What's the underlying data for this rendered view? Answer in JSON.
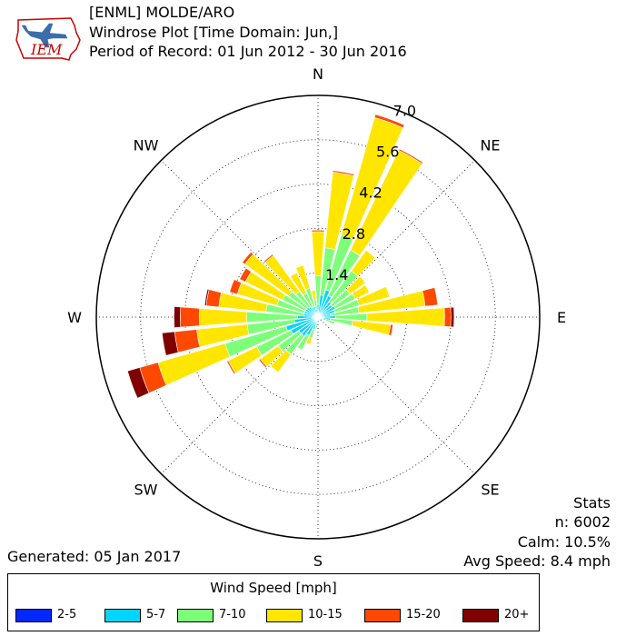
{
  "header": {
    "line1": "[ENML] MOLDE/ARO",
    "line2": "Windrose Plot [Time Domain: Jun,]",
    "line3": "Period of Record: 01 Jun 2012 - 30 Jun 2016"
  },
  "logo": {
    "text": "IEM"
  },
  "generated": "Generated: 05 Jan 2017",
  "stats": {
    "title": "Stats",
    "n": "n: 6002",
    "calm": "Calm: 10.5%",
    "avg": "Avg Speed: 8.4 mph"
  },
  "legend": {
    "title": "Wind Speed [mph]",
    "items": [
      {
        "label": "2-5",
        "color": "#0028ff"
      },
      {
        "label": "5-7",
        "color": "#00d4ff"
      },
      {
        "label": "7-10",
        "color": "#7dff7a"
      },
      {
        "label": "10-15",
        "color": "#ffe600"
      },
      {
        "label": "15-20",
        "color": "#ff4800"
      },
      {
        "label": "20+",
        "color": "#800000"
      }
    ]
  },
  "chart_data": {
    "type": "windrose",
    "directions": [
      "N",
      "NE",
      "E",
      "SE",
      "S",
      "SW",
      "W",
      "NW"
    ],
    "radial_ticks": [
      "1.4",
      "2.8",
      "4.2",
      "5.6",
      "7.0"
    ],
    "rmax": 7.0,
    "bin_labels": [
      "2-5",
      "5-7",
      "7-10",
      "10-15",
      "15-20",
      "20+"
    ],
    "bin_colors": [
      "#0028ff",
      "#00d4ff",
      "#7dff7a",
      "#ffe600",
      "#ff4800",
      "#800000"
    ],
    "sectors_deg": [
      0,
      10,
      20,
      30,
      40,
      50,
      60,
      70,
      80,
      90,
      100,
      110,
      120,
      130,
      140,
      150,
      160,
      170,
      180,
      190,
      200,
      210,
      220,
      230,
      240,
      250,
      260,
      270,
      280,
      290,
      300,
      310,
      320,
      330,
      340,
      350
    ],
    "values": [
      [
        0.05,
        0.35,
        0.9,
        1.4,
        0.05,
        0.0
      ],
      [
        0.05,
        0.65,
        1.5,
        2.4,
        0.05,
        0.0
      ],
      [
        0.05,
        0.85,
        1.8,
        3.85,
        0.1,
        0.0
      ],
      [
        0.05,
        0.7,
        1.6,
        3.5,
        0.05,
        0.0
      ],
      [
        0.05,
        0.55,
        1.2,
        0.8,
        0.0,
        0.0
      ],
      [
        0.05,
        0.5,
        0.7,
        0.6,
        0.0,
        0.0
      ],
      [
        0.05,
        0.55,
        0.7,
        0.5,
        0.0,
        0.0
      ],
      [
        0.05,
        0.5,
        0.8,
        1.0,
        0.0,
        0.0
      ],
      [
        0.05,
        0.35,
        0.9,
        2.1,
        0.4,
        0.0
      ],
      [
        0.05,
        0.5,
        1.0,
        2.45,
        0.2,
        0.1
      ],
      [
        0.05,
        0.35,
        0.7,
        1.2,
        0.08,
        0.0
      ],
      [
        0.05,
        0.2,
        0.3,
        0.0,
        0.0,
        0.0
      ],
      [
        0.05,
        0.1,
        0.0,
        0.0,
        0.0,
        0.0
      ],
      [
        0.03,
        0.0,
        0.0,
        0.0,
        0.0,
        0.0
      ],
      [
        0.02,
        0.0,
        0.0,
        0.0,
        0.0,
        0.0
      ],
      [
        0.02,
        0.0,
        0.0,
        0.0,
        0.0,
        0.0
      ],
      [
        0.02,
        0.0,
        0.0,
        0.0,
        0.0,
        0.0
      ],
      [
        0.03,
        0.0,
        0.0,
        0.0,
        0.0,
        0.0
      ],
      [
        0.03,
        0.0,
        0.0,
        0.0,
        0.0,
        0.0
      ],
      [
        0.05,
        0.15,
        0.15,
        0.0,
        0.0,
        0.0
      ],
      [
        0.05,
        0.35,
        0.3,
        0.2,
        0.0,
        0.0
      ],
      [
        0.05,
        0.6,
        0.5,
        0.0,
        0.0,
        0.0
      ],
      [
        0.05,
        0.7,
        0.7,
        0.7,
        0.0,
        0.0
      ],
      [
        0.05,
        0.7,
        0.8,
        0.7,
        0.05,
        0.0
      ],
      [
        0.05,
        0.9,
        1.2,
        1.0,
        0.05,
        0.0
      ],
      [
        0.05,
        1.0,
        2.0,
        2.2,
        0.6,
        0.4
      ],
      [
        0.05,
        0.7,
        1.5,
        1.6,
        0.7,
        0.4
      ],
      [
        0.05,
        0.6,
        1.6,
        1.5,
        0.6,
        0.2
      ],
      [
        0.05,
        0.4,
        1.2,
        1.5,
        0.4,
        0.05
      ],
      [
        0.05,
        0.4,
        0.9,
        1.3,
        0.25,
        0.0
      ],
      [
        0.05,
        0.4,
        0.8,
        1.3,
        0.2,
        0.0
      ],
      [
        0.05,
        0.4,
        0.7,
        1.7,
        0.1,
        0.0
      ],
      [
        0.05,
        0.35,
        0.6,
        1.4,
        0.05,
        0.0
      ],
      [
        0.05,
        0.3,
        0.5,
        0.7,
        0.0,
        0.0
      ],
      [
        0.05,
        0.3,
        0.6,
        0.75,
        0.0,
        0.0
      ],
      [
        0.05,
        0.2,
        0.3,
        0.3,
        0.0,
        0.0
      ]
    ]
  }
}
